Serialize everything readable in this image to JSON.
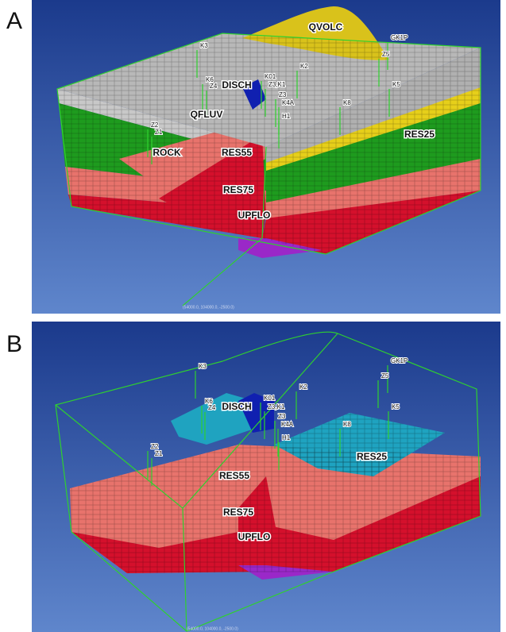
{
  "panels": [
    {
      "label": "A",
      "units": [
        "QVOLC",
        "DISCH",
        "QFLUV",
        "RES25",
        "ROCK",
        "RES55",
        "RES75",
        "UPFLO"
      ],
      "wells": [
        "K3",
        "GK1P",
        "Z5",
        "K2",
        "K6",
        "Z4",
        "K01",
        "Z3,K1",
        "K5",
        "Z3",
        "K4A",
        "K8",
        "H1",
        "Z2",
        "Z1"
      ],
      "coordinate": "(54000.0, 104000.0, -2500.0)"
    },
    {
      "label": "B",
      "units": [
        "DISCH",
        "RES25",
        "RES55",
        "RES75",
        "UPFLO"
      ],
      "wells": [
        "K3",
        "GK1P",
        "Z5",
        "K2",
        "K6",
        "Z4",
        "K01",
        "Z3,K1",
        "K5",
        "Z3",
        "K4A",
        "K8",
        "H1",
        "Z2",
        "Z1"
      ],
      "coordinate": "(54000.0, 104000.0, -2500.0)"
    }
  ]
}
